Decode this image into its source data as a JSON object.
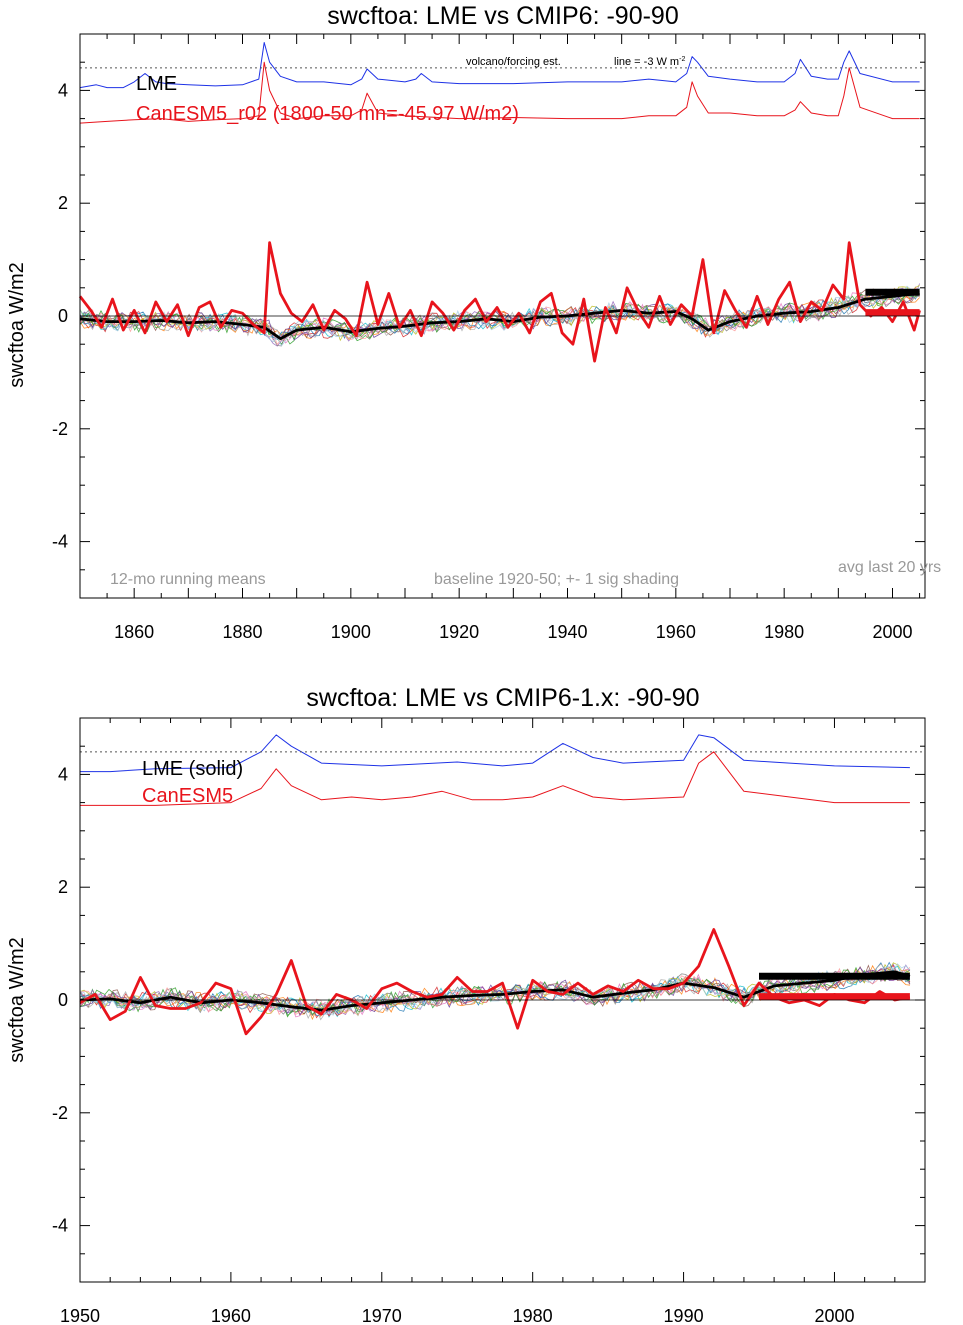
{
  "chart_data": [
    {
      "type": "line",
      "title": "swcftoa: LME vs CMIP6: -90-90",
      "ylabel": "swcftoa W/m2",
      "xlim": [
        1850,
        2006
      ],
      "ylim": [
        -5,
        5
      ],
      "x_ticks": [
        "1860",
        "1880",
        "1900",
        "1920",
        "1940",
        "1960",
        "1980",
        "2000"
      ],
      "y_ticks": [
        "4",
        "2",
        "0",
        "-2",
        "-4"
      ],
      "grid": false,
      "legend": [
        {
          "label": "LME",
          "color": "#000000"
        },
        {
          "label": "CanESM5_r02 (1800-50 mn=-45.97 W/m2)",
          "color": "#e8141c"
        }
      ],
      "annotations": {
        "volcano_label": "volcano/forcing est.",
        "line_label": "line = -3 W m",
        "line_label_sup": "-2",
        "running_means": "12-mo running means",
        "baseline": "baseline 1920-50; +- 1 sig shading",
        "avg_label": "avg last 20 yrs"
      },
      "reference_line_y": 4.4,
      "series": [
        {
          "role": "lme_mean",
          "color": "#000000",
          "x": [
            1850,
            1855,
            1860,
            1865,
            1870,
            1875,
            1880,
            1884,
            1887,
            1890,
            1895,
            1900,
            1905,
            1910,
            1915,
            1920,
            1925,
            1930,
            1935,
            1940,
            1945,
            1950,
            1955,
            1960,
            1963,
            1966,
            1970,
            1975,
            1980,
            1985,
            1990,
            1995,
            2000,
            2005
          ],
          "y": [
            -0.05,
            -0.1,
            -0.1,
            -0.08,
            -0.12,
            -0.1,
            -0.15,
            -0.2,
            -0.4,
            -0.25,
            -0.2,
            -0.28,
            -0.22,
            -0.18,
            -0.12,
            -0.1,
            -0.05,
            -0.1,
            -0.02,
            0.0,
            0.05,
            0.1,
            0.05,
            0.08,
            -0.05,
            -0.25,
            -0.1,
            0.0,
            0.05,
            0.08,
            0.15,
            0.3,
            0.35,
            0.4
          ]
        },
        {
          "role": "canesm5_r02",
          "color": "#e8141c",
          "x": [
            1850,
            1852,
            1854,
            1856,
            1858,
            1860,
            1862,
            1864,
            1866,
            1868,
            1870,
            1872,
            1874,
            1876,
            1878,
            1880,
            1882,
            1884,
            1885,
            1887,
            1889,
            1891,
            1893,
            1895,
            1897,
            1899,
            1901,
            1903,
            1905,
            1907,
            1909,
            1911,
            1913,
            1915,
            1917,
            1919,
            1921,
            1923,
            1925,
            1927,
            1929,
            1931,
            1933,
            1935,
            1937,
            1939,
            1941,
            1943,
            1945,
            1947,
            1949,
            1951,
            1953,
            1955,
            1957,
            1959,
            1961,
            1963,
            1965,
            1967,
            1969,
            1971,
            1973,
            1975,
            1977,
            1979,
            1981,
            1983,
            1985,
            1987,
            1989,
            1991,
            1992,
            1994,
            1996,
            1998,
            2000,
            2002,
            2004,
            2005
          ],
          "y": [
            0.35,
            0.1,
            -0.2,
            0.3,
            -0.25,
            0.1,
            -0.3,
            0.25,
            -0.1,
            0.2,
            -0.35,
            0.15,
            0.25,
            -0.2,
            0.1,
            0.05,
            -0.15,
            -0.3,
            1.3,
            0.4,
            0.05,
            -0.1,
            0.2,
            -0.25,
            0.1,
            -0.05,
            -0.35,
            0.6,
            -0.15,
            0.4,
            -0.2,
            0.1,
            -0.35,
            0.25,
            0.05,
            -0.25,
            0.1,
            0.3,
            -0.1,
            0.15,
            -0.2,
            0.05,
            -0.3,
            0.25,
            0.4,
            -0.3,
            -0.5,
            0.3,
            -0.8,
            0.15,
            -0.3,
            0.5,
            0.1,
            -0.2,
            0.35,
            -0.15,
            0.2,
            0.0,
            1.0,
            -0.3,
            0.45,
            0.1,
            -0.2,
            0.35,
            -0.15,
            0.3,
            0.6,
            -0.1,
            0.25,
            0.1,
            0.55,
            0.3,
            1.3,
            0.2,
            0.0,
            0.15,
            -0.1,
            0.25,
            -0.25,
            0.1
          ]
        },
        {
          "role": "lme_volcanic_forcing",
          "color": "#1e32e6",
          "x": [
            1850,
            1853,
            1855,
            1858,
            1860,
            1862,
            1864,
            1866,
            1870,
            1875,
            1880,
            1883,
            1884,
            1885,
            1887,
            1890,
            1895,
            1900,
            1902,
            1903,
            1905,
            1910,
            1912,
            1913,
            1915,
            1920,
            1930,
            1940,
            1950,
            1955,
            1960,
            1962,
            1963,
            1964,
            1966,
            1970,
            1975,
            1980,
            1982,
            1983,
            1985,
            1988,
            1990,
            1991,
            1992,
            1994,
            2000,
            2005
          ],
          "y": [
            4.05,
            4.1,
            4.05,
            4.05,
            4.15,
            4.3,
            4.15,
            4.12,
            4.1,
            4.08,
            4.1,
            4.2,
            4.85,
            4.5,
            4.25,
            4.15,
            4.15,
            4.1,
            4.2,
            4.38,
            4.2,
            4.15,
            4.2,
            4.3,
            4.15,
            4.12,
            4.12,
            4.15,
            4.15,
            4.2,
            4.15,
            4.3,
            4.6,
            4.5,
            4.25,
            4.2,
            4.15,
            4.15,
            4.3,
            4.55,
            4.25,
            4.2,
            4.2,
            4.5,
            4.7,
            4.3,
            4.15,
            4.15
          ]
        },
        {
          "role": "canesm5_volcanic_forcing",
          "color": "#e8141c",
          "x": [
            1850,
            1855,
            1860,
            1865,
            1870,
            1875,
            1880,
            1883,
            1884,
            1885,
            1887,
            1890,
            1895,
            1900,
            1902,
            1903,
            1905,
            1910,
            1920,
            1930,
            1940,
            1950,
            1955,
            1960,
            1962,
            1963,
            1964,
            1966,
            1970,
            1975,
            1980,
            1982,
            1983,
            1985,
            1988,
            1990,
            1991,
            1992,
            1994,
            2000,
            2005
          ],
          "y": [
            3.42,
            3.45,
            3.48,
            3.5,
            3.45,
            3.48,
            3.5,
            3.55,
            4.5,
            4.0,
            3.6,
            3.5,
            3.55,
            3.55,
            3.65,
            3.95,
            3.6,
            3.55,
            3.5,
            3.52,
            3.5,
            3.5,
            3.55,
            3.55,
            3.7,
            4.15,
            3.9,
            3.6,
            3.6,
            3.55,
            3.55,
            3.65,
            3.8,
            3.6,
            3.55,
            3.55,
            3.9,
            4.4,
            3.7,
            3.5,
            3.5
          ]
        },
        {
          "role": "lme_avg_last_20_yrs",
          "color": "#000000",
          "x": [
            1995,
            2005
          ],
          "y": [
            0.42,
            0.42
          ]
        },
        {
          "role": "canesm5_avg_last_20_yrs",
          "color": "#e8141c",
          "x": [
            1995,
            2005
          ],
          "y": [
            0.06,
            0.06
          ]
        }
      ]
    },
    {
      "type": "line",
      "title": "swcftoa: LME vs CMIP6-1.x: -90-90",
      "ylabel": "swcftoa W/m2",
      "xlim": [
        1950,
        2006
      ],
      "ylim": [
        -5,
        5
      ],
      "x_ticks": [
        "1950",
        "1960",
        "1970",
        "1980",
        "1990",
        "2000"
      ],
      "y_ticks": [
        "4",
        "2",
        "0",
        "-2",
        "-4"
      ],
      "grid": false,
      "legend": [
        {
          "label": "LME (solid)",
          "color": "#000000"
        },
        {
          "label": "CanESM5",
          "color": "#e8141c"
        }
      ],
      "reference_line_y": 4.4,
      "series": [
        {
          "role": "lme_mean",
          "color": "#000000",
          "x": [
            1950,
            1952,
            1954,
            1956,
            1958,
            1960,
            1962,
            1964,
            1966,
            1968,
            1970,
            1972,
            1974,
            1976,
            1978,
            1980,
            1982,
            1984,
            1986,
            1988,
            1990,
            1992,
            1994,
            1996,
            1998,
            2000,
            2002,
            2004,
            2005
          ],
          "y": [
            0.0,
            0.02,
            -0.05,
            0.05,
            -0.05,
            0.0,
            -0.05,
            -0.12,
            -0.18,
            -0.1,
            -0.05,
            0.0,
            0.05,
            0.08,
            0.1,
            0.15,
            0.18,
            0.05,
            0.12,
            0.18,
            0.3,
            0.22,
            0.05,
            0.25,
            0.3,
            0.35,
            0.45,
            0.5,
            0.42
          ]
        },
        {
          "role": "canesm5",
          "color": "#e8141c",
          "x": [
            1950,
            1951,
            1952,
            1953,
            1954,
            1955,
            1956,
            1957,
            1958,
            1959,
            1960,
            1961,
            1962,
            1963,
            1964,
            1965,
            1966,
            1967,
            1968,
            1969,
            1970,
            1971,
            1972,
            1973,
            1974,
            1975,
            1976,
            1977,
            1978,
            1979,
            1980,
            1981,
            1982,
            1983,
            1984,
            1985,
            1986,
            1987,
            1988,
            1989,
            1990,
            1991,
            1992,
            1993,
            1994,
            1995,
            1996,
            1997,
            1998,
            1999,
            2000,
            2001,
            2002,
            2003,
            2004,
            2005
          ],
          "y": [
            -0.05,
            0.1,
            -0.35,
            -0.2,
            0.4,
            -0.1,
            -0.15,
            -0.15,
            -0.05,
            0.3,
            0.2,
            -0.6,
            -0.3,
            0.1,
            0.7,
            -0.1,
            -0.25,
            0.1,
            0.0,
            -0.15,
            0.2,
            0.3,
            0.15,
            0.05,
            0.1,
            0.4,
            0.15,
            0.15,
            0.3,
            -0.5,
            0.35,
            0.15,
            0.1,
            0.3,
            0.1,
            0.25,
            0.15,
            0.35,
            0.2,
            0.2,
            0.3,
            0.6,
            1.25,
            0.6,
            -0.1,
            0.3,
            0.05,
            -0.05,
            0.0,
            -0.1,
            0.1,
            0.0,
            -0.05,
            0.15,
            0.0,
            0.05
          ]
        },
        {
          "role": "lme_volcanic_forcing",
          "color": "#1e32e6",
          "x": [
            1950,
            1952,
            1955,
            1960,
            1962,
            1963,
            1964,
            1966,
            1970,
            1975,
            1978,
            1980,
            1982,
            1984,
            1986,
            1990,
            1991,
            1992,
            1994,
            2000,
            2005
          ],
          "y": [
            4.05,
            4.05,
            4.1,
            4.12,
            4.4,
            4.7,
            4.5,
            4.2,
            4.15,
            4.22,
            4.15,
            4.2,
            4.55,
            4.3,
            4.2,
            4.25,
            4.7,
            4.65,
            4.25,
            4.15,
            4.12
          ]
        },
        {
          "role": "canesm5_volcanic_forcing",
          "color": "#e8141c",
          "x": [
            1950,
            1952,
            1955,
            1960,
            1962,
            1963,
            1964,
            1966,
            1968,
            1970,
            1972,
            1974,
            1976,
            1978,
            1980,
            1982,
            1984,
            1986,
            1990,
            1991,
            1992,
            1994,
            2000,
            2005
          ],
          "y": [
            3.45,
            3.45,
            3.45,
            3.5,
            3.75,
            4.1,
            3.8,
            3.55,
            3.6,
            3.55,
            3.6,
            3.7,
            3.55,
            3.55,
            3.6,
            3.8,
            3.6,
            3.55,
            3.6,
            4.2,
            4.4,
            3.7,
            3.5,
            3.5
          ]
        },
        {
          "role": "lme_avg_last_20_yrs",
          "color": "#000000",
          "x": [
            1995,
            2005
          ],
          "y": [
            0.42,
            0.42
          ]
        },
        {
          "role": "canesm5_avg_last_20_yrs",
          "color": "#e8141c",
          "x": [
            1995,
            2005
          ],
          "y": [
            0.06,
            0.06
          ]
        }
      ]
    }
  ]
}
